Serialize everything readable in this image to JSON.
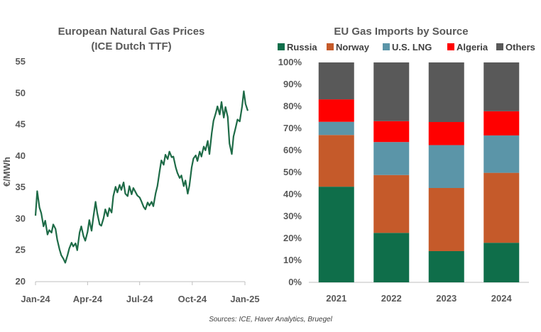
{
  "source_note": "Sources: ICE, Haver Analytics, Bruegel",
  "chart_data": [
    {
      "type": "line",
      "title": "European Natural Gas Prices",
      "subtitle": "(ICE Dutch TTF)",
      "ylabel": "€/MWh",
      "ylim": [
        20,
        55
      ],
      "yticks": [
        "20",
        "25",
        "30",
        "35",
        "40",
        "45",
        "50",
        "55"
      ],
      "xtick_labels": [
        "Jan-24",
        "Apr-24",
        "Jul-24",
        "Oct-24",
        "Jan-25"
      ],
      "grid": false,
      "color": "#1e6b47",
      "series": [
        {
          "x": [
            "2024-01-01",
            "2024-01-04",
            "2024-01-08",
            "2024-01-11",
            "2024-01-15",
            "2024-01-18",
            "2024-01-22",
            "2024-01-25",
            "2024-01-29",
            "2024-02-01",
            "2024-02-05",
            "2024-02-08",
            "2024-02-12",
            "2024-02-15",
            "2024-02-19",
            "2024-02-22",
            "2024-02-26",
            "2024-02-29",
            "2024-03-04",
            "2024-03-07",
            "2024-03-11",
            "2024-03-14",
            "2024-03-18",
            "2024-03-21",
            "2024-03-25",
            "2024-03-28",
            "2024-04-01",
            "2024-04-04",
            "2024-04-08",
            "2024-04-11",
            "2024-04-15",
            "2024-04-18",
            "2024-04-22",
            "2024-04-25",
            "2024-04-29",
            "2024-05-02",
            "2024-05-06",
            "2024-05-09",
            "2024-05-13",
            "2024-05-16",
            "2024-05-20",
            "2024-05-23",
            "2024-05-27",
            "2024-05-30",
            "2024-06-03",
            "2024-06-06",
            "2024-06-10",
            "2024-06-13",
            "2024-06-17",
            "2024-06-20",
            "2024-06-24",
            "2024-06-27",
            "2024-07-01",
            "2024-07-04",
            "2024-07-08",
            "2024-07-11",
            "2024-07-15",
            "2024-07-18",
            "2024-07-22",
            "2024-07-25",
            "2024-07-29",
            "2024-08-01",
            "2024-08-05",
            "2024-08-08",
            "2024-08-12",
            "2024-08-15",
            "2024-08-19",
            "2024-08-22",
            "2024-08-26",
            "2024-08-29",
            "2024-09-02",
            "2024-09-05",
            "2024-09-09",
            "2024-09-12",
            "2024-09-16",
            "2024-09-19",
            "2024-09-23",
            "2024-09-26",
            "2024-09-30",
            "2024-10-03",
            "2024-10-07",
            "2024-10-10",
            "2024-10-14",
            "2024-10-17",
            "2024-10-21",
            "2024-10-24",
            "2024-10-28",
            "2024-10-31",
            "2024-11-04",
            "2024-11-07",
            "2024-11-11",
            "2024-11-14",
            "2024-11-18",
            "2024-11-21",
            "2024-11-25",
            "2024-11-28",
            "2024-12-02",
            "2024-12-05",
            "2024-12-09",
            "2024-12-12",
            "2024-12-16",
            "2024-12-19",
            "2024-12-23",
            "2024-12-27",
            "2024-12-30",
            "2025-01-02",
            "2025-01-06"
          ],
          "y": [
            30.5,
            34.4,
            31.8,
            30.9,
            28.8,
            29.7,
            27.5,
            28.2,
            27.8,
            29.1,
            28.4,
            26.7,
            25.1,
            24.2,
            23.6,
            23.0,
            24.2,
            25.3,
            26.2,
            25.6,
            26.1,
            25.0,
            27.8,
            28.8,
            27.2,
            26.5,
            27.9,
            29.8,
            28.1,
            30.2,
            32.7,
            30.9,
            29.1,
            28.9,
            30.1,
            31.5,
            30.4,
            31.7,
            31.0,
            33.6,
            35.1,
            34.2,
            35.4,
            34.6,
            35.8,
            34.0,
            33.6,
            35.2,
            33.9,
            34.9,
            34.2,
            33.7,
            33.4,
            32.8,
            31.9,
            31.5,
            32.6,
            32.1,
            32.7,
            32.0,
            34.1,
            35.2,
            37.6,
            39.3,
            38.6,
            40.2,
            39.5,
            40.7,
            39.8,
            39.9,
            38.2,
            37.3,
            36.5,
            36.9,
            35.2,
            36.1,
            34.0,
            35.3,
            38.2,
            39.6,
            40.1,
            39.2,
            40.7,
            39.9,
            41.5,
            40.9,
            42.4,
            40.3,
            43.7,
            45.6,
            46.8,
            47.9,
            46.6,
            48.6,
            46.1,
            47.8,
            46.2,
            42.0,
            40.3,
            43.1,
            44.6,
            45.8,
            45.5,
            47.9,
            50.3,
            48.3,
            47.2
          ]
        }
      ]
    },
    {
      "type": "bar",
      "stacked": true,
      "title": "EU Gas Imports by Source",
      "categories": [
        "2021",
        "2022",
        "2023",
        "2024"
      ],
      "ylim": [
        0,
        100
      ],
      "yticks": [
        "0%",
        "10%",
        "20%",
        "30%",
        "40%",
        "50%",
        "60%",
        "70%",
        "80%",
        "90%",
        "100%"
      ],
      "legend_position": "top",
      "series": [
        {
          "name": "Russia",
          "color": "#0f6e4a",
          "values": [
            43.5,
            22.5,
            14.2,
            18.0
          ]
        },
        {
          "name": "Norway",
          "color": "#c55a2a",
          "values": [
            23.5,
            26.3,
            28.7,
            31.8
          ]
        },
        {
          "name": "U.S. LNG",
          "color": "#5b95a8",
          "values": [
            6.0,
            15.0,
            19.5,
            17.0
          ]
        },
        {
          "name": "Algeria",
          "color": "#ff0000",
          "values": [
            10.2,
            9.5,
            10.5,
            11.0
          ]
        },
        {
          "name": "Others",
          "color": "#595959",
          "values": [
            16.8,
            26.7,
            27.1,
            22.2
          ]
        }
      ]
    }
  ]
}
